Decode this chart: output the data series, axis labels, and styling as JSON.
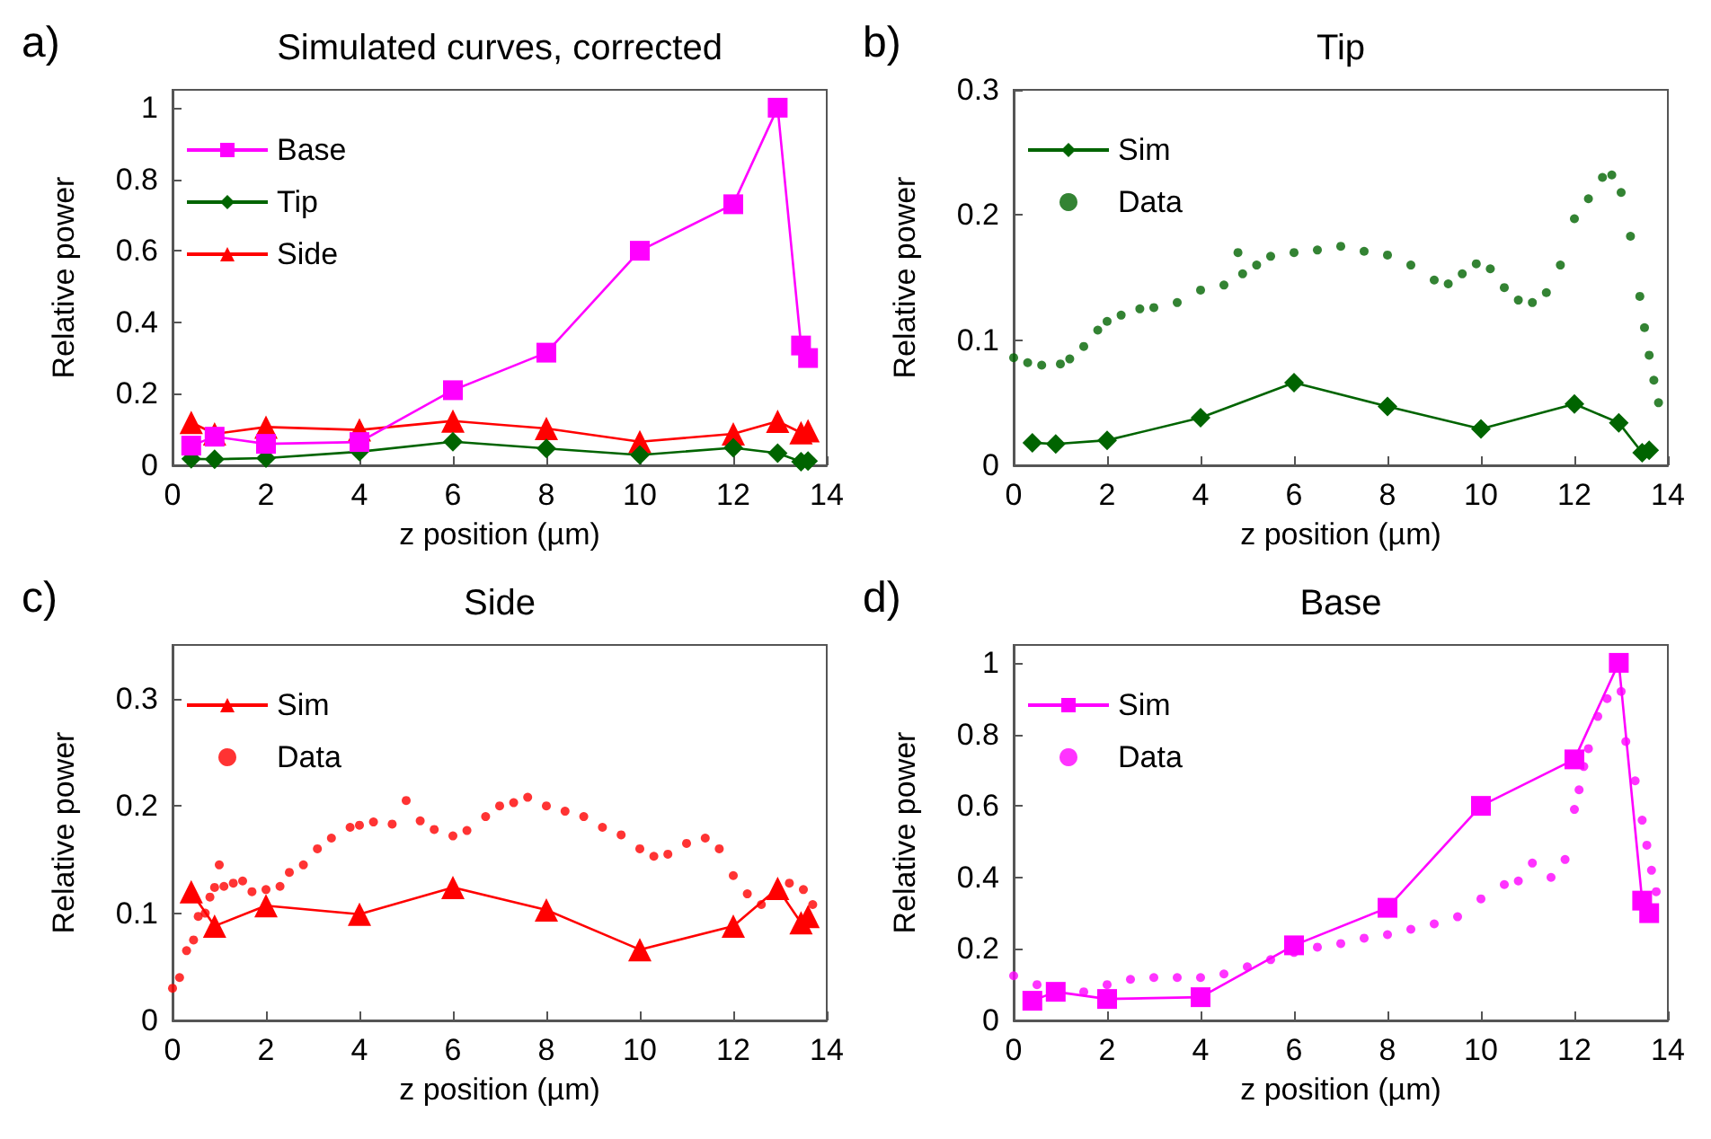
{
  "chart_data": [
    {
      "type": "line",
      "title": "Simulated curves, corrected",
      "xlabel": "z position (µm)",
      "ylabel": "Relative power",
      "annotations": [
        "a)"
      ],
      "xlim": [
        0,
        14
      ],
      "xticks": [
        0,
        2,
        4,
        6,
        8,
        10,
        12,
        14
      ],
      "ylim": [
        0,
        1.05
      ],
      "yticks": [
        0,
        0.2,
        0.4,
        0.6,
        0.8,
        1
      ],
      "legend": "top left",
      "grid": false,
      "series": [
        {
          "name": "Base",
          "color": "#ff00ff",
          "marker": "square",
          "x": [
            0.4,
            0.9,
            2,
            4,
            6,
            8,
            10,
            12,
            12.95,
            13.45,
            13.6
          ],
          "values": [
            0.055,
            0.08,
            0.06,
            0.065,
            0.21,
            0.315,
            0.6,
            0.73,
            1.0,
            0.335,
            0.3
          ]
        },
        {
          "name": "Tip",
          "color": "#006400",
          "marker": "diamond",
          "x": [
            0.4,
            0.9,
            2,
            4,
            6,
            8,
            10,
            12,
            12.95,
            13.45,
            13.6
          ],
          "values": [
            0.018,
            0.017,
            0.02,
            0.038,
            0.066,
            0.047,
            0.029,
            0.049,
            0.034,
            0.01,
            0.012
          ]
        },
        {
          "name": "Side",
          "color": "#ff0000",
          "marker": "triangle",
          "x": [
            0.4,
            0.9,
            2,
            4,
            6,
            8,
            10,
            12,
            12.95,
            13.45,
            13.6
          ],
          "values": [
            0.12,
            0.088,
            0.107,
            0.099,
            0.124,
            0.103,
            0.066,
            0.088,
            0.123,
            0.091,
            0.097
          ]
        }
      ]
    },
    {
      "type": "line",
      "title": "Tip",
      "xlabel": "z position (µm)",
      "ylabel": "Relative power",
      "annotations": [
        "b)"
      ],
      "xlim": [
        0,
        14
      ],
      "xticks": [
        0,
        2,
        4,
        6,
        8,
        10,
        12,
        14
      ],
      "ylim": [
        0,
        0.3
      ],
      "yticks": [
        0,
        0.1,
        0.2,
        0.3
      ],
      "legend": "top left",
      "grid": false,
      "series": [
        {
          "name": "Sim",
          "color": "#006400",
          "marker": "diamond",
          "x": [
            0.4,
            0.9,
            2,
            4,
            6,
            8,
            10,
            12,
            12.95,
            13.45,
            13.6
          ],
          "values": [
            0.018,
            0.017,
            0.02,
            0.038,
            0.066,
            0.047,
            0.029,
            0.049,
            0.034,
            0.01,
            0.012
          ]
        },
        {
          "name": "Data",
          "type": "scatter",
          "color": "#006400",
          "marker": "circle",
          "x": [
            0,
            0.3,
            0.6,
            1.0,
            1.2,
            1.5,
            1.8,
            2.0,
            2.3,
            2.7,
            3.0,
            3.5,
            4.0,
            4.5,
            4.8,
            4.9,
            5.2,
            5.5,
            6.0,
            6.5,
            7.0,
            7.5,
            8.0,
            8.5,
            9.0,
            9.3,
            9.6,
            9.9,
            10.2,
            10.5,
            10.8,
            11.1,
            11.4,
            11.7,
            12.0,
            12.3,
            12.6,
            12.8,
            13.0,
            13.2,
            13.4,
            13.5,
            13.6,
            13.7,
            13.8
          ],
          "values": [
            0.086,
            0.082,
            0.08,
            0.081,
            0.085,
            0.095,
            0.108,
            0.115,
            0.12,
            0.125,
            0.126,
            0.13,
            0.14,
            0.144,
            0.17,
            0.153,
            0.16,
            0.167,
            0.17,
            0.172,
            0.175,
            0.171,
            0.168,
            0.16,
            0.148,
            0.145,
            0.153,
            0.161,
            0.157,
            0.142,
            0.132,
            0.13,
            0.138,
            0.16,
            0.197,
            0.213,
            0.23,
            0.232,
            0.218,
            0.183,
            0.135,
            0.11,
            0.088,
            0.068,
            0.05
          ]
        }
      ]
    },
    {
      "type": "line",
      "title": "Side",
      "xlabel": "z position (µm)",
      "ylabel": "Relative power",
      "annotations": [
        "c)"
      ],
      "xlim": [
        0,
        14
      ],
      "xticks": [
        0,
        2,
        4,
        6,
        8,
        10,
        12,
        14
      ],
      "ylim": [
        0,
        0.35
      ],
      "yticks": [
        0,
        0.1,
        0.2,
        0.3
      ],
      "legend": "top left",
      "grid": false,
      "series": [
        {
          "name": "Sim",
          "color": "#ff0000",
          "marker": "triangle",
          "x": [
            0.4,
            0.9,
            2,
            4,
            6,
            8,
            10,
            12,
            12.95,
            13.45,
            13.6
          ],
          "values": [
            0.12,
            0.088,
            0.107,
            0.099,
            0.124,
            0.103,
            0.066,
            0.088,
            0.123,
            0.091,
            0.097
          ]
        },
        {
          "name": "Data",
          "type": "scatter",
          "color": "#ff0000",
          "marker": "circle",
          "x": [
            0,
            0.15,
            0.3,
            0.45,
            0.55,
            0.7,
            0.8,
            0.9,
            1.0,
            1.1,
            1.3,
            1.5,
            1.7,
            2.0,
            2.3,
            2.5,
            2.8,
            3.1,
            3.4,
            3.8,
            4.0,
            4.3,
            4.7,
            5.0,
            5.3,
            5.6,
            6.0,
            6.3,
            6.7,
            7.0,
            7.3,
            7.6,
            8.0,
            8.4,
            8.8,
            9.2,
            9.6,
            10.0,
            10.3,
            10.6,
            11.0,
            11.4,
            11.7,
            12.0,
            12.3,
            12.6,
            13.2,
            13.5,
            13.7
          ],
          "values": [
            0.03,
            0.04,
            0.065,
            0.075,
            0.097,
            0.1,
            0.115,
            0.124,
            0.145,
            0.125,
            0.128,
            0.13,
            0.12,
            0.122,
            0.125,
            0.138,
            0.145,
            0.16,
            0.17,
            0.18,
            0.182,
            0.185,
            0.183,
            0.205,
            0.186,
            0.178,
            0.172,
            0.177,
            0.19,
            0.2,
            0.203,
            0.208,
            0.2,
            0.195,
            0.19,
            0.18,
            0.173,
            0.16,
            0.153,
            0.155,
            0.165,
            0.17,
            0.16,
            0.135,
            0.118,
            0.108,
            0.128,
            0.122,
            0.108
          ]
        }
      ]
    },
    {
      "type": "line",
      "title": "Base",
      "xlabel": "z position (µm)",
      "ylabel": "Relative power",
      "annotations": [
        "d)"
      ],
      "xlim": [
        0,
        14
      ],
      "xticks": [
        0,
        2,
        4,
        6,
        8,
        10,
        12,
        14
      ],
      "ylim": [
        0,
        1.05
      ],
      "yticks": [
        0,
        0.2,
        0.4,
        0.6,
        0.8,
        1
      ],
      "legend": "top left",
      "grid": false,
      "series": [
        {
          "name": "Sim",
          "color": "#ff00ff",
          "marker": "square",
          "x": [
            0.4,
            0.9,
            2,
            4,
            6,
            8,
            10,
            12,
            12.95,
            13.45,
            13.6
          ],
          "values": [
            0.055,
            0.08,
            0.06,
            0.065,
            0.21,
            0.315,
            0.6,
            0.73,
            1.0,
            0.335,
            0.3
          ]
        },
        {
          "name": "Data",
          "type": "scatter",
          "color": "#ff00ff",
          "marker": "circle",
          "x": [
            0,
            0.5,
            1.5,
            2.0,
            2.5,
            3.0,
            3.5,
            4.0,
            4.5,
            5.0,
            5.5,
            6.0,
            6.5,
            7.0,
            7.5,
            8.0,
            8.5,
            9.0,
            9.5,
            10.0,
            10.5,
            10.8,
            11.1,
            11.5,
            11.8,
            12.0,
            12.1,
            12.2,
            12.3,
            12.5,
            12.7,
            13.0,
            13.1,
            13.3,
            13.45,
            13.55,
            13.65,
            13.75
          ],
          "values": [
            0.125,
            0.1,
            0.08,
            0.1,
            0.115,
            0.12,
            0.12,
            0.12,
            0.13,
            0.15,
            0.17,
            0.19,
            0.205,
            0.215,
            0.23,
            0.24,
            0.255,
            0.27,
            0.29,
            0.34,
            0.38,
            0.39,
            0.44,
            0.4,
            0.45,
            0.59,
            0.645,
            0.71,
            0.76,
            0.85,
            0.9,
            0.92,
            0.78,
            0.67,
            0.56,
            0.49,
            0.42,
            0.36
          ]
        }
      ]
    }
  ]
}
